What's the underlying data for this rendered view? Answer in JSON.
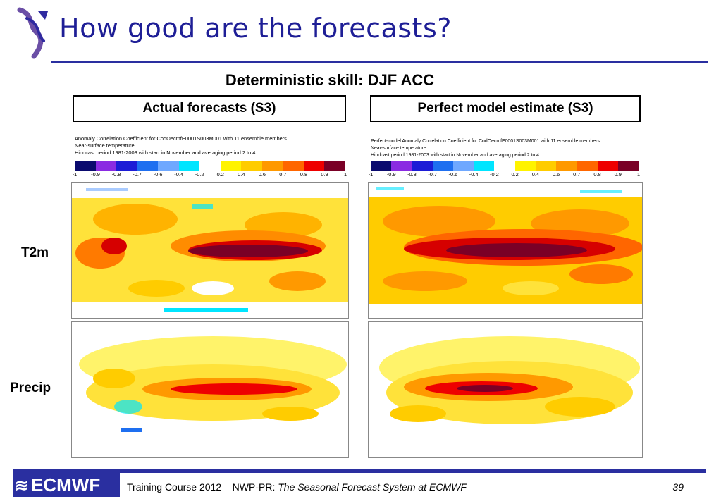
{
  "slide": {
    "title": "How good are the forecasts?",
    "subtitle": "Deterministic skill:  DJF ACC",
    "left_box": "Actual forecasts (S3)",
    "right_box": "Perfect model estimate (S3)",
    "row_labels": [
      "T2m",
      "Precip"
    ]
  },
  "panels": {
    "left_header": [
      "Anomaly Correlation Coefficient for CodOecmfE0001S003M001 with 11 ensemble members",
      "Near-surface temperature",
      "Hindcast period 1981-2003 with start in November and averaging period 2 to 4"
    ],
    "right_header": [
      "Perfect-model Anomaly Correlation Coefficient for CodOecmfE0001S003M001 with 11 ensemble members",
      "Near-surface temperature",
      "Hindcast period 1981-2003 with start in November and averaging period 2 to 4"
    ],
    "colorbar_ticks": [
      "-1",
      "-0.9",
      "-0.8",
      "-0.7",
      "-0.6",
      "-0.4",
      "-0.2",
      "0.2",
      "0.4",
      "0.6",
      "0.7",
      "0.8",
      "0.9",
      "1"
    ],
    "colorbar_colors": [
      "#0a0a6e",
      "#8a2be2",
      "#1c1cd6",
      "#1e6ff0",
      "#6fa8ff",
      "#00e5ff",
      "#ffffff",
      "#fff300",
      "#ffcc00",
      "#ff9900",
      "#ff6600",
      "#ee0000",
      "#7a0026"
    ]
  },
  "footer": {
    "logo": "ECMWF",
    "text_plain": "Training Course 2012 – NWP-PR: ",
    "text_italic": "The Seasonal Forecast System at ECMWF",
    "page": "39"
  }
}
